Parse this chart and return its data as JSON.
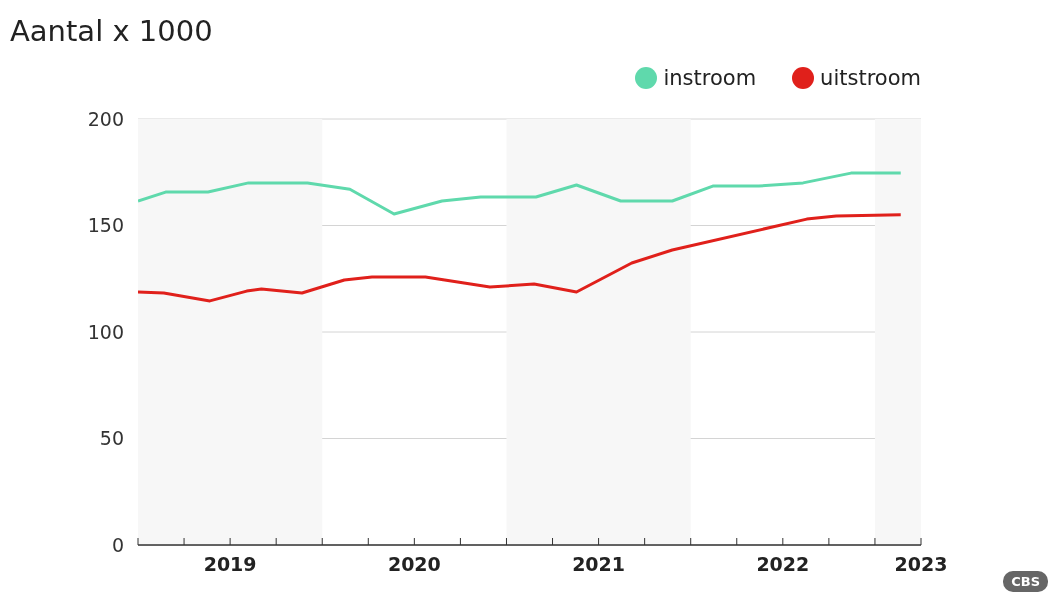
{
  "chart_data": {
    "type": "line",
    "title": "Aantal x 1000",
    "series": [
      {
        "name": "instroom",
        "color": "#5fd9ac",
        "x": [
          2019.0,
          2019.15,
          2019.38,
          2019.6,
          2019.92,
          2020.15,
          2020.39,
          2020.65,
          2020.86,
          2021.16,
          2021.38,
          2021.62,
          2021.9,
          2022.12,
          2022.37,
          2022.61,
          2022.87,
          2023.14
        ],
        "values": [
          161.5,
          165.7,
          165.7,
          170,
          170,
          167,
          155.4,
          161.5,
          163.4,
          163.4,
          169,
          161.5,
          161.5,
          168.5,
          168.5,
          170,
          174.6,
          174.6
        ]
      },
      {
        "name": "uitstroom",
        "color": "#e0201b",
        "x": [
          2019.0,
          2019.14,
          2019.39,
          2019.59,
          2019.67,
          2019.89,
          2020.12,
          2020.27,
          2020.56,
          2020.91,
          2021.15,
          2021.38,
          2021.68,
          2021.9,
          2022.63,
          2022.79,
          2023.14
        ],
        "values": [
          118.8,
          118.3,
          114.6,
          119.2,
          120.2,
          118.3,
          124.4,
          125.8,
          125.8,
          121.1,
          122.5,
          118.8,
          132.4,
          138.5,
          153,
          154.5,
          155
        ]
      }
    ],
    "xlim": [
      2019,
      2023.25
    ],
    "xticks": [
      {
        "value": 2019,
        "label": null
      },
      {
        "value": 2019.25,
        "label": null
      },
      {
        "value": 2019.5,
        "label": "2019"
      },
      {
        "value": 2019.75,
        "label": null
      },
      {
        "value": 2020,
        "label": null
      },
      {
        "value": 2020.25,
        "label": null
      },
      {
        "value": 2020.5,
        "label": "2020"
      },
      {
        "value": 2020.75,
        "label": null
      },
      {
        "value": 2021,
        "label": null
      },
      {
        "value": 2021.25,
        "label": null
      },
      {
        "value": 2021.5,
        "label": "2021"
      },
      {
        "value": 2021.75,
        "label": null
      },
      {
        "value": 2022,
        "label": null
      },
      {
        "value": 2022.25,
        "label": null
      },
      {
        "value": 2022.5,
        "label": "2022"
      },
      {
        "value": 2022.75,
        "label": null
      },
      {
        "value": 2023,
        "label": null
      },
      {
        "value": 2023.25,
        "label": "2023"
      }
    ],
    "ylim": [
      0,
      200
    ],
    "yticks": [
      0,
      50,
      100,
      150,
      200
    ],
    "bands": [
      {
        "axis": "x",
        "from": 2019,
        "to": 2020,
        "color": "#f7f7f7"
      },
      {
        "axis": "x",
        "from": 2021,
        "to": 2022,
        "color": "#f7f7f7"
      },
      {
        "axis": "x",
        "from": 2023,
        "to": 2023.25,
        "color": "#f7f7f7"
      }
    ],
    "grid": "y",
    "legend": "top right",
    "marker": "none",
    "line_style": "solid",
    "annotations": [
      "CBS"
    ]
  }
}
